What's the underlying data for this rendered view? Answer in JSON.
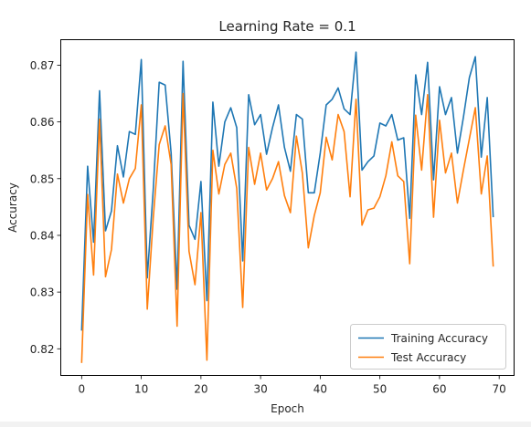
{
  "chart_data": {
    "type": "line",
    "title": "Learning Rate = 0.1",
    "xlabel": "Epoch",
    "ylabel": "Accuracy",
    "xlim": [
      -3.5,
      72.5
    ],
    "ylim": [
      0.8153,
      0.8745
    ],
    "xticks": [
      0,
      10,
      20,
      30,
      40,
      50,
      60,
      70
    ],
    "yticks": [
      0.82,
      0.83,
      0.84,
      0.85,
      0.86,
      0.87
    ],
    "ytick_labels": [
      "0.82",
      "0.83",
      "0.84",
      "0.85",
      "0.86",
      "0.87"
    ],
    "legend_position": "lower right",
    "x": [
      0,
      1,
      2,
      3,
      4,
      5,
      6,
      7,
      8,
      9,
      10,
      11,
      12,
      13,
      14,
      15,
      16,
      17,
      18,
      19,
      20,
      21,
      22,
      23,
      24,
      25,
      26,
      27,
      28,
      29,
      30,
      31,
      32,
      33,
      34,
      35,
      36,
      37,
      38,
      39,
      40,
      41,
      42,
      43,
      44,
      45,
      46,
      47,
      48,
      49,
      50,
      51,
      52,
      53,
      54,
      55,
      56,
      57,
      58,
      59,
      60,
      61,
      62,
      63,
      64,
      65,
      66,
      67,
      68,
      69
    ],
    "series": [
      {
        "name": "Training Accuracy",
        "color": "#1f77b4",
        "values": [
          0.8232,
          0.8522,
          0.8388,
          0.8655,
          0.8408,
          0.8443,
          0.8558,
          0.8503,
          0.8583,
          0.8578,
          0.871,
          0.8325,
          0.848,
          0.867,
          0.8665,
          0.8545,
          0.8305,
          0.8707,
          0.8418,
          0.8393,
          0.8495,
          0.8285,
          0.8635,
          0.8522,
          0.86,
          0.8625,
          0.859,
          0.8355,
          0.8648,
          0.8595,
          0.8613,
          0.8543,
          0.859,
          0.863,
          0.8555,
          0.8513,
          0.8613,
          0.8605,
          0.8475,
          0.8475,
          0.8545,
          0.863,
          0.864,
          0.866,
          0.8623,
          0.8613,
          0.8723,
          0.8515,
          0.853,
          0.854,
          0.8598,
          0.8593,
          0.8613,
          0.8568,
          0.8572,
          0.843,
          0.8683,
          0.8613,
          0.8705,
          0.8498,
          0.8662,
          0.8613,
          0.8643,
          0.8545,
          0.8608,
          0.8678,
          0.8715,
          0.8538,
          0.8643,
          0.8432
        ]
      },
      {
        "name": "Test Accuracy",
        "color": "#ff7f0e",
        "values": [
          0.8175,
          0.8472,
          0.833,
          0.8605,
          0.8327,
          0.8375,
          0.8508,
          0.8457,
          0.85,
          0.8518,
          0.863,
          0.827,
          0.843,
          0.856,
          0.8593,
          0.8525,
          0.824,
          0.865,
          0.8372,
          0.8313,
          0.844,
          0.818,
          0.855,
          0.8473,
          0.8525,
          0.8545,
          0.8483,
          0.8273,
          0.8555,
          0.849,
          0.8545,
          0.848,
          0.85,
          0.853,
          0.847,
          0.844,
          0.8575,
          0.851,
          0.8378,
          0.8435,
          0.8475,
          0.8573,
          0.8533,
          0.8613,
          0.8583,
          0.8468,
          0.864,
          0.8418,
          0.8445,
          0.8448,
          0.8468,
          0.8505,
          0.8565,
          0.8505,
          0.8495,
          0.835,
          0.8612,
          0.8515,
          0.8648,
          0.8432,
          0.8603,
          0.851,
          0.8545,
          0.8457,
          0.8515,
          0.857,
          0.8625,
          0.8473,
          0.854,
          0.8345
        ]
      }
    ]
  }
}
